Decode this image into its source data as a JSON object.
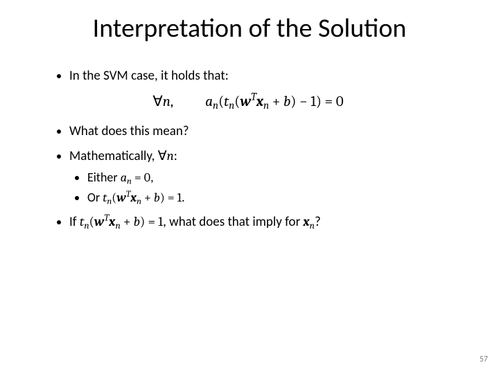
{
  "slide": {
    "title": "Interpretation of the Solution",
    "page_number": "57",
    "background_color": "#ffffff",
    "title_color": "#000000",
    "text_color": "#000000",
    "title_fontsize": 38,
    "body_fontsize": 19,
    "sub_fontsize": 18,
    "pagenum_color": "#808080",
    "bullets": [
      {
        "text_before": "In the SVM case, it holds that:",
        "equation_display": "∀n,    aₙ(tₙ(wᵀxₙ + b) − 1) = 0"
      },
      {
        "text": "What does this mean?"
      },
      {
        "text_before": "Mathematically, ∀n:",
        "sub_bullets": [
          "Either aₙ = 0,",
          "Or tₙ(wᵀxₙ + b) = 1."
        ]
      },
      {
        "text": "If tₙ(wᵀxₙ + b) = 1, what does that imply for xₙ?"
      }
    ]
  }
}
